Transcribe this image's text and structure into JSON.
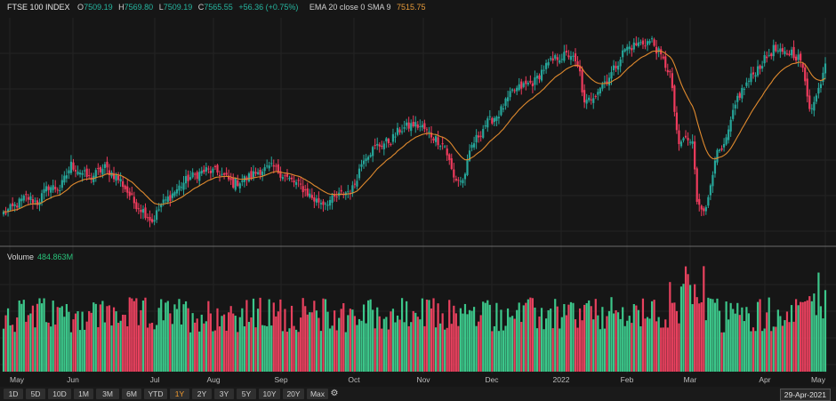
{
  "legend": {
    "symbol": "FTSE 100 INDEX",
    "open_label": "O",
    "open": "7509.19",
    "high_label": "H",
    "high": "7569.80",
    "low_label": "L",
    "low": "7509.19",
    "close_label": "C",
    "close": "7565.55",
    "change": "+56.36 (+0.75%)",
    "indicator": "EMA 20 close 0 SMA 9",
    "indicator_value": "7515.75"
  },
  "volume_legend": {
    "label": "Volume",
    "value": "484.863M"
  },
  "toolbar": {
    "ranges": [
      "1D",
      "5D",
      "10D",
      "1M",
      "3M",
      "6M",
      "YTD",
      "1Y",
      "2Y",
      "3Y",
      "5Y",
      "10Y",
      "20Y",
      "Max"
    ],
    "active": "1Y",
    "date": "29-Apr-2021"
  },
  "colors": {
    "up": "#26a69a",
    "down": "#ef3b5d",
    "ema": "#e08a2e",
    "vol_up": "#3cc68a",
    "vol_down": "#e8415e",
    "bg": "#161616",
    "grid": "#242424"
  },
  "chart_data": {
    "type": "candlestick",
    "x_labels": [
      "May",
      "Jun",
      "Jul",
      "Aug",
      "Sep",
      "Oct",
      "Nov",
      "Dec",
      "2022",
      "Feb",
      "Mar",
      "Apr",
      "May"
    ],
    "price_range": [
      6910,
      7690
    ],
    "volume_range": [
      0,
      1200
    ],
    "grid": true,
    "series": [
      {
        "name": "FTSE 100 INDEX",
        "kind": "ohlc",
        "anchors": [
          [
            0,
            6990
          ],
          [
            4,
            7010
          ],
          [
            10,
            7050
          ],
          [
            15,
            7030
          ],
          [
            20,
            7090
          ],
          [
            25,
            7080
          ],
          [
            30,
            7170
          ],
          [
            38,
            7120
          ],
          [
            45,
            7160
          ],
          [
            52,
            7110
          ],
          [
            58,
            7030
          ],
          [
            62,
            7000
          ],
          [
            66,
            6960
          ],
          [
            70,
            7020
          ],
          [
            76,
            7070
          ],
          [
            82,
            7120
          ],
          [
            90,
            7150
          ],
          [
            96,
            7140
          ],
          [
            102,
            7100
          ],
          [
            108,
            7120
          ],
          [
            114,
            7150
          ],
          [
            120,
            7160
          ],
          [
            126,
            7120
          ],
          [
            132,
            7090
          ],
          [
            138,
            7040
          ],
          [
            142,
            7030
          ],
          [
            146,
            7040
          ],
          [
            150,
            7060
          ],
          [
            155,
            7080
          ],
          [
            160,
            7200
          ],
          [
            166,
            7240
          ],
          [
            172,
            7260
          ],
          [
            176,
            7300
          ],
          [
            182,
            7320
          ],
          [
            186,
            7310
          ],
          [
            190,
            7280
          ],
          [
            196,
            7240
          ],
          [
            200,
            7120
          ],
          [
            204,
            7110
          ],
          [
            208,
            7240
          ],
          [
            214,
            7320
          ],
          [
            220,
            7360
          ],
          [
            226,
            7440
          ],
          [
            230,
            7460
          ],
          [
            236,
            7480
          ],
          [
            240,
            7530
          ],
          [
            246,
            7570
          ],
          [
            252,
            7580
          ],
          [
            256,
            7510
          ],
          [
            258,
            7390
          ],
          [
            262,
            7430
          ],
          [
            270,
            7510
          ],
          [
            276,
            7600
          ],
          [
            282,
            7620
          ],
          [
            288,
            7630
          ],
          [
            292,
            7570
          ],
          [
            296,
            7510
          ],
          [
            300,
            7230
          ],
          [
            302,
            7270
          ],
          [
            306,
            7250
          ],
          [
            308,
            7040
          ],
          [
            312,
            7000
          ],
          [
            316,
            7200
          ],
          [
            320,
            7230
          ],
          [
            326,
            7420
          ],
          [
            330,
            7470
          ],
          [
            334,
            7520
          ],
          [
            338,
            7560
          ],
          [
            342,
            7600
          ],
          [
            346,
            7580
          ],
          [
            350,
            7590
          ],
          [
            354,
            7560
          ],
          [
            358,
            7390
          ],
          [
            360,
            7400
          ],
          [
            362,
            7450
          ],
          [
            364,
            7520
          ]
        ]
      },
      {
        "name": "EMA 20 close 0 SMA 9",
        "kind": "line",
        "values": "derived"
      },
      {
        "name": "Volume",
        "kind": "bar",
        "range": [
          0,
          1200
        ]
      }
    ]
  }
}
